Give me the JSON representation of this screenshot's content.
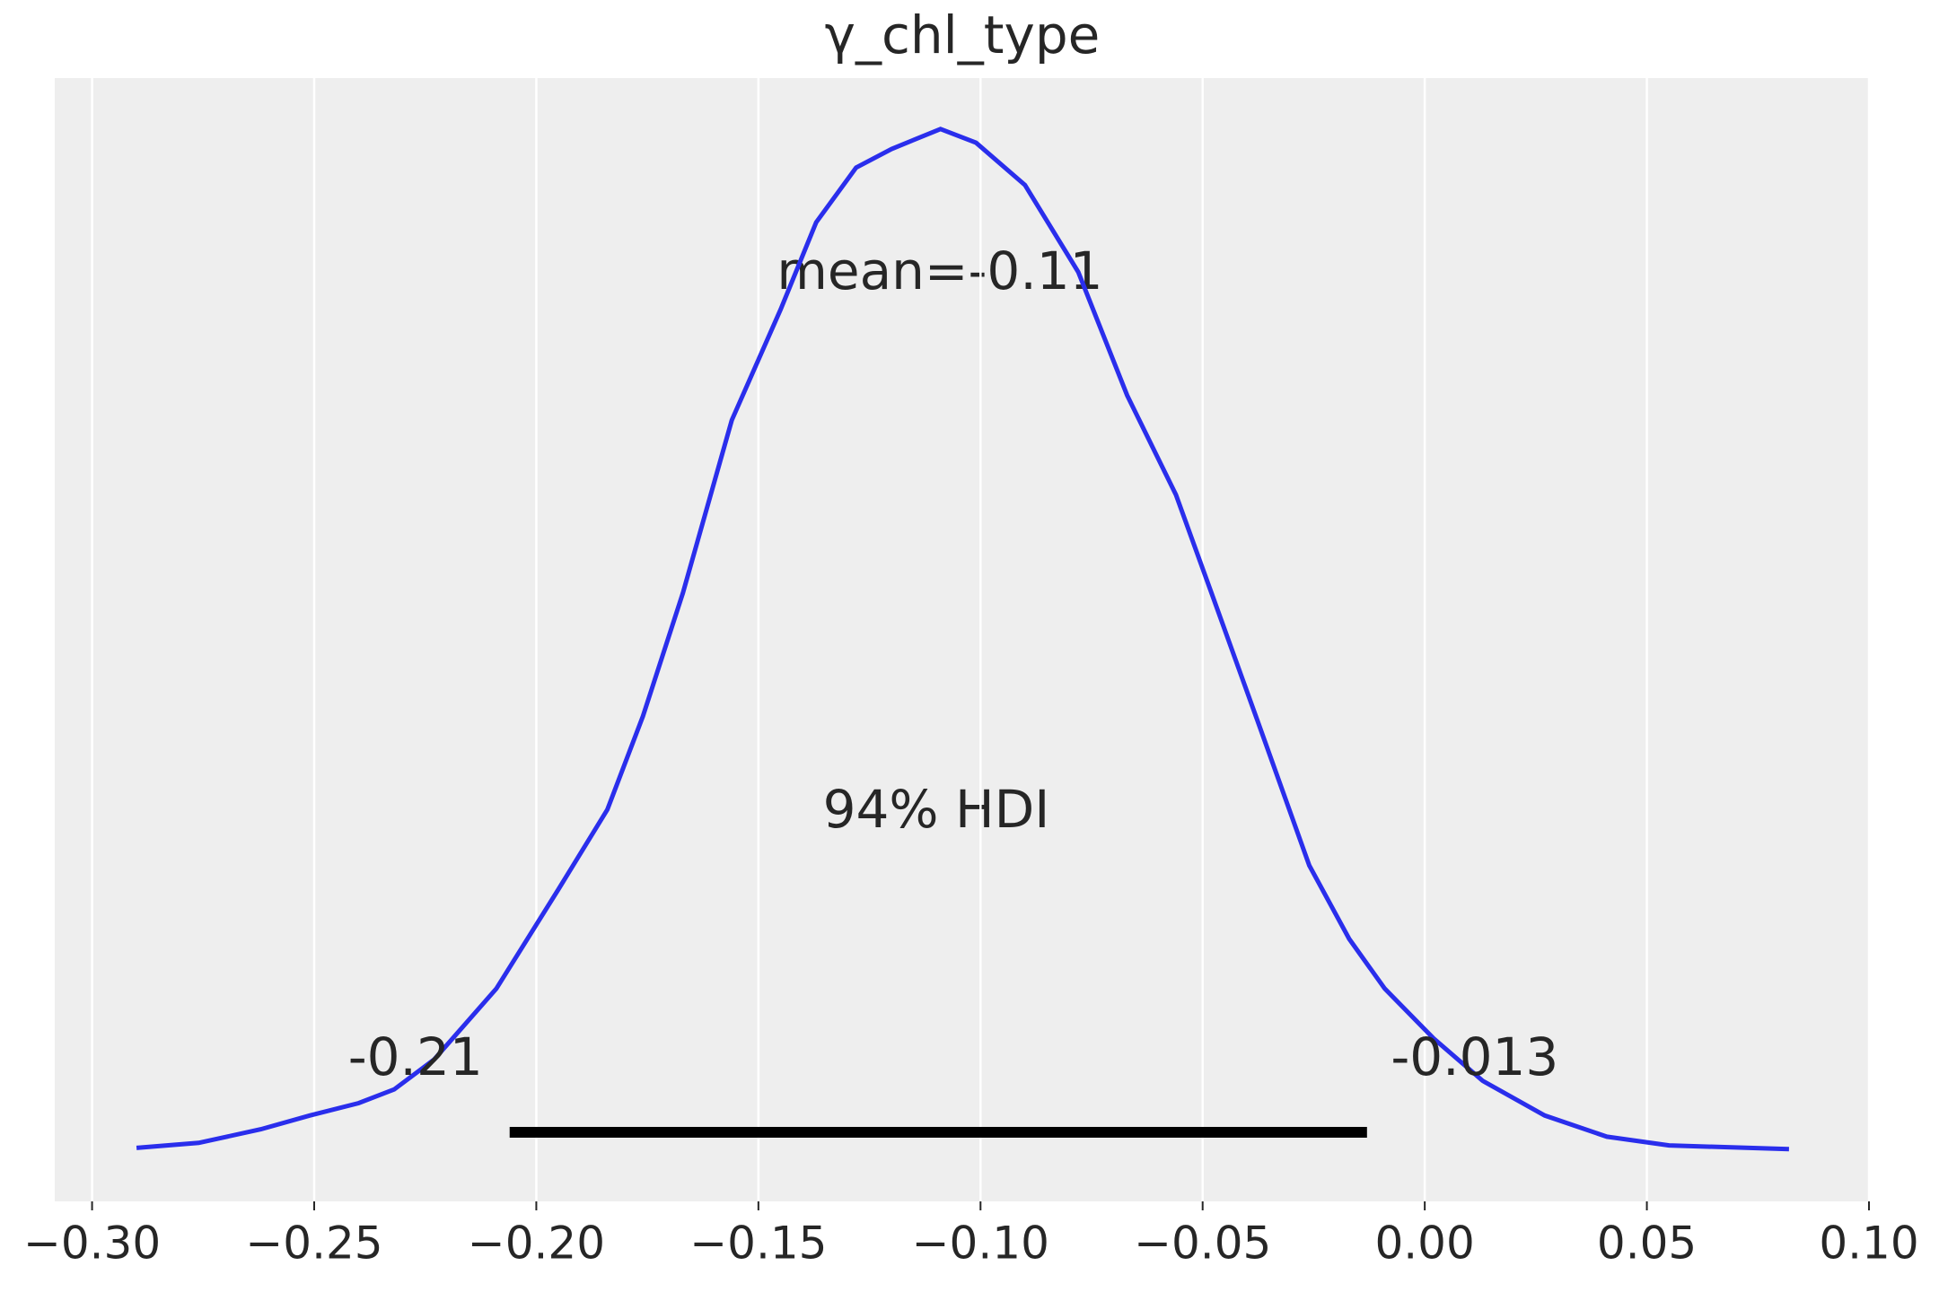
{
  "chart_data": {
    "type": "density",
    "title": "γ_chl_type",
    "x": [
      -0.29,
      -0.276,
      -0.262,
      -0.251,
      -0.24,
      -0.232,
      -0.223,
      -0.209,
      -0.195,
      -0.184,
      -0.176,
      -0.167,
      -0.156,
      -0.145,
      -0.137,
      -0.128,
      -0.12,
      -0.109,
      -0.101,
      -0.09,
      -0.078,
      -0.067,
      -0.056,
      -0.048,
      -0.037,
      -0.026,
      -0.017,
      -0.009,
      0.002,
      0.013,
      0.027,
      0.041,
      0.055,
      0.082
    ],
    "values": [
      0.01,
      0.05,
      0.16,
      0.27,
      0.37,
      0.48,
      0.72,
      1.29,
      2.09,
      2.73,
      3.48,
      4.47,
      5.86,
      6.75,
      7.45,
      7.89,
      8.04,
      8.2,
      8.09,
      7.75,
      7.05,
      6.06,
      5.26,
      4.47,
      3.38,
      2.28,
      1.69,
      1.29,
      0.89,
      0.55,
      0.27,
      0.1,
      0.03,
      0.0
    ],
    "color": "#2a2eec",
    "mean_label": "mean=-0.11",
    "hdi": {
      "label": "94% HDI",
      "values": [
        -0.206,
        -0.013
      ],
      "value_labels": [
        "-0.21",
        "-0.013"
      ],
      "color": "#000000"
    },
    "xlim": [
      -0.3084,
      0.1
    ],
    "ylim": [
      -0.42,
      8.61
    ],
    "xticks": [
      {
        "value": -0.3,
        "label": "−0.30"
      },
      {
        "value": -0.25,
        "label": "−0.25"
      },
      {
        "value": -0.2,
        "label": "−0.20"
      },
      {
        "value": -0.15,
        "label": "−0.15"
      },
      {
        "value": -0.1,
        "label": "−0.10"
      },
      {
        "value": -0.05,
        "label": "−0.05"
      },
      {
        "value": 0,
        "label": "0.00"
      },
      {
        "value": 0.05,
        "label": "0.05"
      },
      {
        "value": 0.1,
        "label": "0.10"
      }
    ],
    "grid": true
  }
}
